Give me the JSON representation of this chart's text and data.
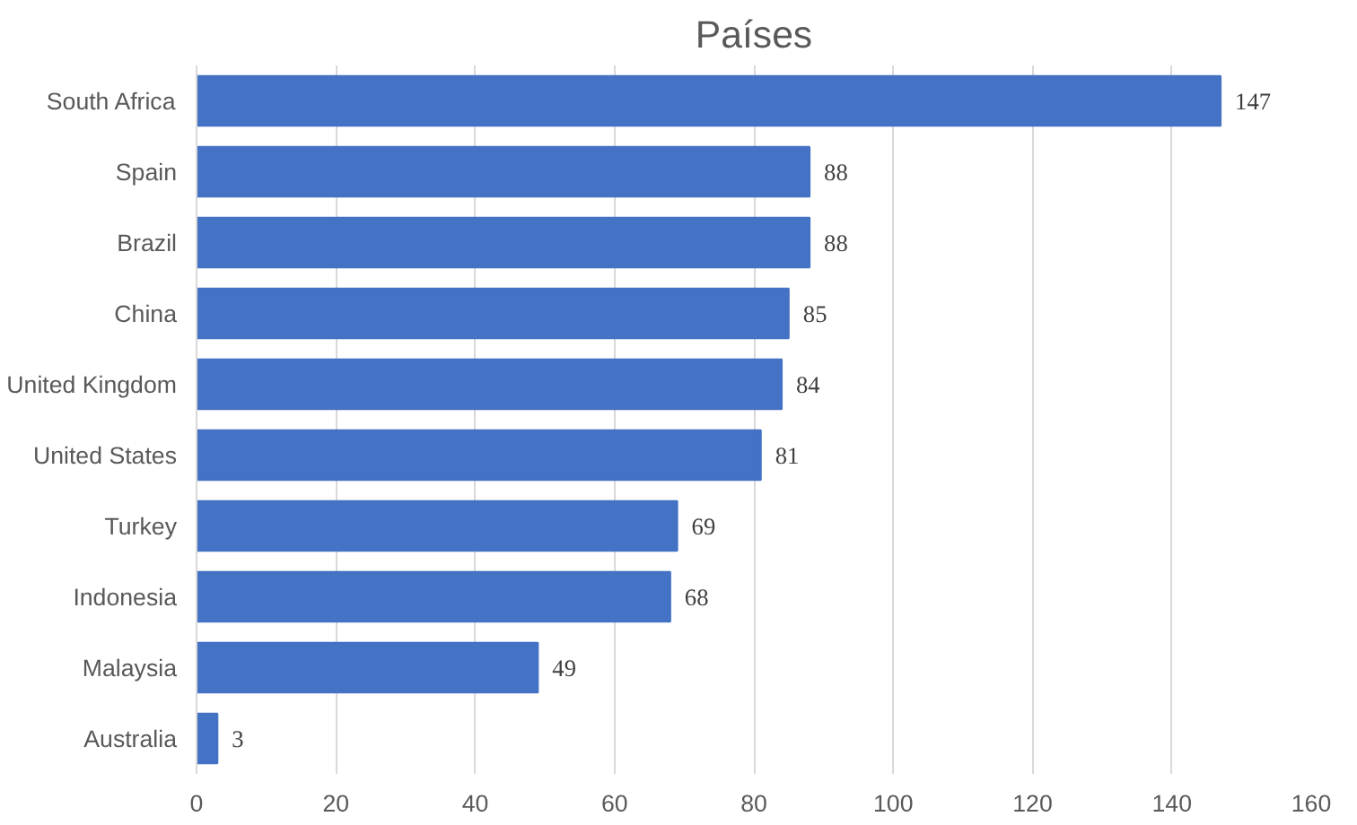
{
  "chart_data": {
    "type": "bar",
    "orientation": "horizontal",
    "title": "Países",
    "categories": [
      "South Africa",
      "Spain",
      "Brazil",
      "China",
      "United Kingdom",
      "United States",
      "Turkey",
      "Indonesia",
      "Malaysia",
      "Australia"
    ],
    "values": [
      147,
      88,
      88,
      85,
      84,
      81,
      69,
      68,
      49,
      3
    ],
    "color": "#4472c4",
    "xlim": [
      0,
      160
    ],
    "xticks": [
      0,
      20,
      40,
      60,
      80,
      100,
      120,
      140,
      160
    ],
    "grid": "x",
    "data_labels": true
  }
}
